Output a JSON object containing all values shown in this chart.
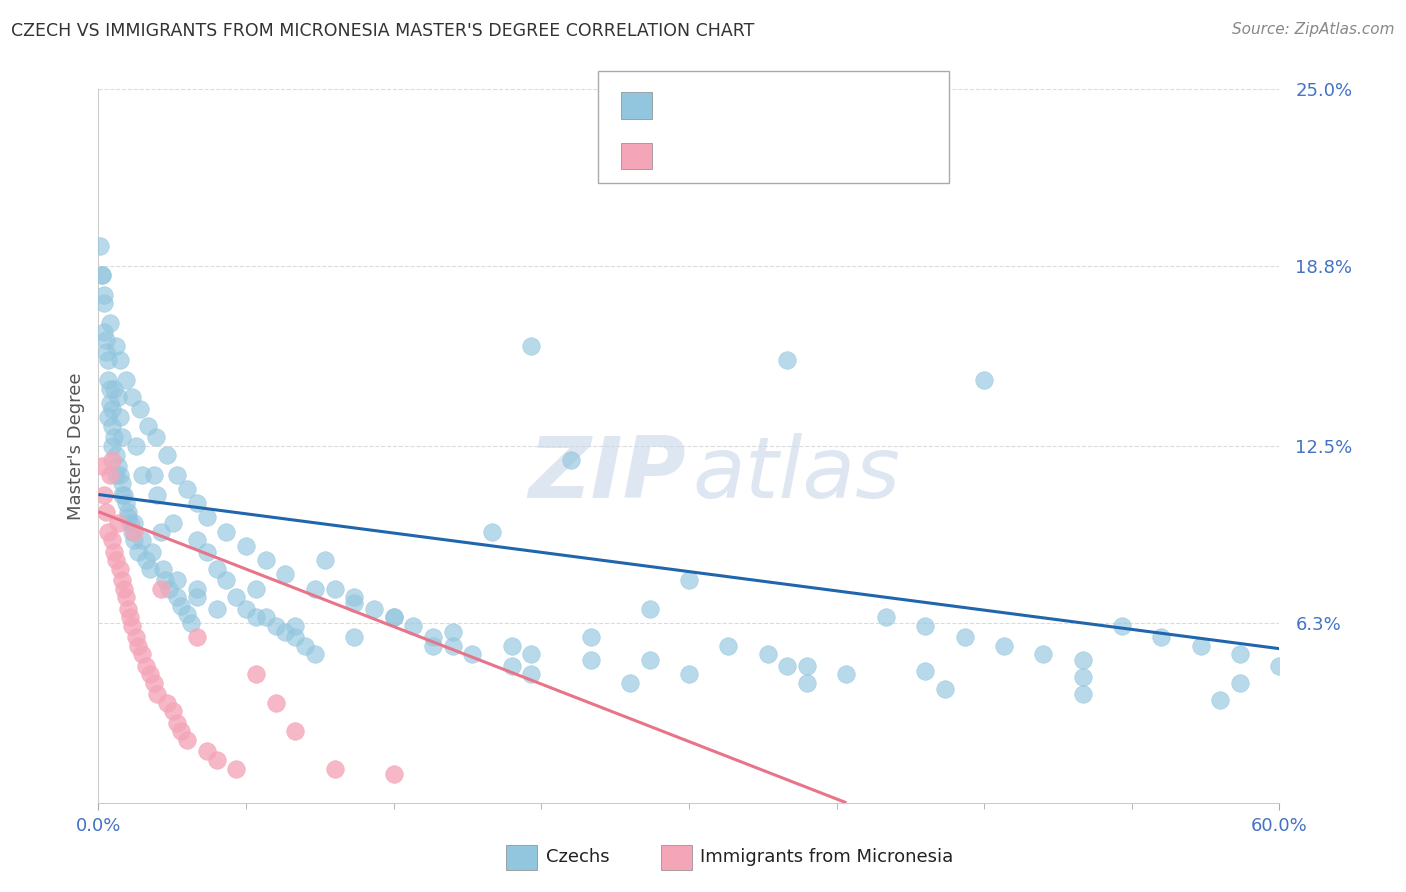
{
  "title": "CZECH VS IMMIGRANTS FROM MICRONESIA MASTER'S DEGREE CORRELATION CHART",
  "source": "Source: ZipAtlas.com",
  "ylabel": "Master's Degree",
  "xlim": [
    0.0,
    0.6
  ],
  "ylim": [
    0.0,
    0.25
  ],
  "ytick_labels": [
    "6.3%",
    "12.5%",
    "18.8%",
    "25.0%"
  ],
  "ytick_positions": [
    0.063,
    0.125,
    0.188,
    0.25
  ],
  "watermark_zip": "ZIP",
  "watermark_atlas": "atlas",
  "blue_color": "#92c5de",
  "pink_color": "#f4a6b8",
  "line_blue": "#2166ac",
  "line_pink": "#e8748a",
  "tick_color": "#4472c4",
  "background_color": "#ffffff",
  "grid_color": "#cccccc",
  "czechs_x": [
    0.001,
    0.002,
    0.003,
    0.003,
    0.004,
    0.004,
    0.005,
    0.005,
    0.006,
    0.006,
    0.007,
    0.007,
    0.008,
    0.008,
    0.009,
    0.01,
    0.01,
    0.011,
    0.011,
    0.012,
    0.012,
    0.013,
    0.014,
    0.015,
    0.016,
    0.017,
    0.018,
    0.019,
    0.02,
    0.022,
    0.024,
    0.026,
    0.028,
    0.03,
    0.032,
    0.034,
    0.036,
    0.038,
    0.04,
    0.042,
    0.045,
    0.047,
    0.05,
    0.05,
    0.055,
    0.06,
    0.065,
    0.07,
    0.075,
    0.08,
    0.085,
    0.09,
    0.095,
    0.1,
    0.105,
    0.11,
    0.115,
    0.12,
    0.13,
    0.14,
    0.15,
    0.16,
    0.17,
    0.18,
    0.19,
    0.2,
    0.21,
    0.22,
    0.24,
    0.25,
    0.27,
    0.28,
    0.3,
    0.32,
    0.34,
    0.36,
    0.38,
    0.4,
    0.42,
    0.44,
    0.46,
    0.48,
    0.5,
    0.52,
    0.54,
    0.56,
    0.58,
    0.6,
    0.005,
    0.007,
    0.009,
    0.012,
    0.015,
    0.018,
    0.022,
    0.027,
    0.033,
    0.04,
    0.05,
    0.06,
    0.08,
    0.1,
    0.13,
    0.17,
    0.22,
    0.28,
    0.35,
    0.42,
    0.5,
    0.58,
    0.002,
    0.003,
    0.006,
    0.009,
    0.011,
    0.014,
    0.017,
    0.021,
    0.025,
    0.029,
    0.035,
    0.04,
    0.045,
    0.05,
    0.055,
    0.065,
    0.075,
    0.085,
    0.095,
    0.11,
    0.13,
    0.15,
    0.18,
    0.21,
    0.25,
    0.3,
    0.36,
    0.43,
    0.5,
    0.57,
    0.22,
    0.35,
    0.45
  ],
  "czechs_y": [
    0.195,
    0.185,
    0.175,
    0.165,
    0.162,
    0.158,
    0.155,
    0.148,
    0.145,
    0.14,
    0.138,
    0.132,
    0.128,
    0.145,
    0.122,
    0.118,
    0.142,
    0.115,
    0.135,
    0.112,
    0.128,
    0.108,
    0.105,
    0.1,
    0.098,
    0.095,
    0.092,
    0.125,
    0.088,
    0.115,
    0.085,
    0.082,
    0.115,
    0.108,
    0.095,
    0.078,
    0.075,
    0.098,
    0.072,
    0.069,
    0.066,
    0.063,
    0.092,
    0.075,
    0.088,
    0.082,
    0.078,
    0.072,
    0.068,
    0.075,
    0.065,
    0.062,
    0.06,
    0.058,
    0.055,
    0.052,
    0.085,
    0.075,
    0.072,
    0.068,
    0.065,
    0.062,
    0.058,
    0.055,
    0.052,
    0.095,
    0.048,
    0.045,
    0.12,
    0.058,
    0.042,
    0.068,
    0.078,
    0.055,
    0.052,
    0.048,
    0.045,
    0.065,
    0.062,
    0.058,
    0.055,
    0.052,
    0.05,
    0.062,
    0.058,
    0.055,
    0.052,
    0.048,
    0.135,
    0.125,
    0.115,
    0.108,
    0.102,
    0.098,
    0.092,
    0.088,
    0.082,
    0.078,
    0.072,
    0.068,
    0.065,
    0.062,
    0.058,
    0.055,
    0.052,
    0.05,
    0.048,
    0.046,
    0.044,
    0.042,
    0.185,
    0.178,
    0.168,
    0.16,
    0.155,
    0.148,
    0.142,
    0.138,
    0.132,
    0.128,
    0.122,
    0.115,
    0.11,
    0.105,
    0.1,
    0.095,
    0.09,
    0.085,
    0.08,
    0.075,
    0.07,
    0.065,
    0.06,
    0.055,
    0.05,
    0.045,
    0.042,
    0.04,
    0.038,
    0.036,
    0.16,
    0.155,
    0.148
  ],
  "micro_x": [
    0.002,
    0.003,
    0.004,
    0.005,
    0.006,
    0.007,
    0.007,
    0.008,
    0.009,
    0.01,
    0.011,
    0.012,
    0.013,
    0.014,
    0.015,
    0.016,
    0.017,
    0.018,
    0.019,
    0.02,
    0.022,
    0.024,
    0.026,
    0.028,
    0.03,
    0.032,
    0.035,
    0.038,
    0.04,
    0.042,
    0.045,
    0.05,
    0.055,
    0.06,
    0.07,
    0.08,
    0.09,
    0.1,
    0.12,
    0.15
  ],
  "micro_y": [
    0.118,
    0.108,
    0.102,
    0.095,
    0.115,
    0.092,
    0.12,
    0.088,
    0.085,
    0.098,
    0.082,
    0.078,
    0.075,
    0.072,
    0.068,
    0.065,
    0.062,
    0.095,
    0.058,
    0.055,
    0.052,
    0.048,
    0.045,
    0.042,
    0.038,
    0.075,
    0.035,
    0.032,
    0.028,
    0.025,
    0.022,
    0.058,
    0.018,
    0.015,
    0.012,
    0.045,
    0.035,
    0.025,
    0.012,
    0.01
  ],
  "blue_line_x": [
    0.0,
    0.6
  ],
  "blue_line_y": [
    0.108,
    0.054
  ],
  "pink_line_x": [
    0.0,
    0.38
  ],
  "pink_line_y": [
    0.102,
    0.0
  ],
  "circle_sizes_czech": 80,
  "circle_sizes_micro": 80
}
